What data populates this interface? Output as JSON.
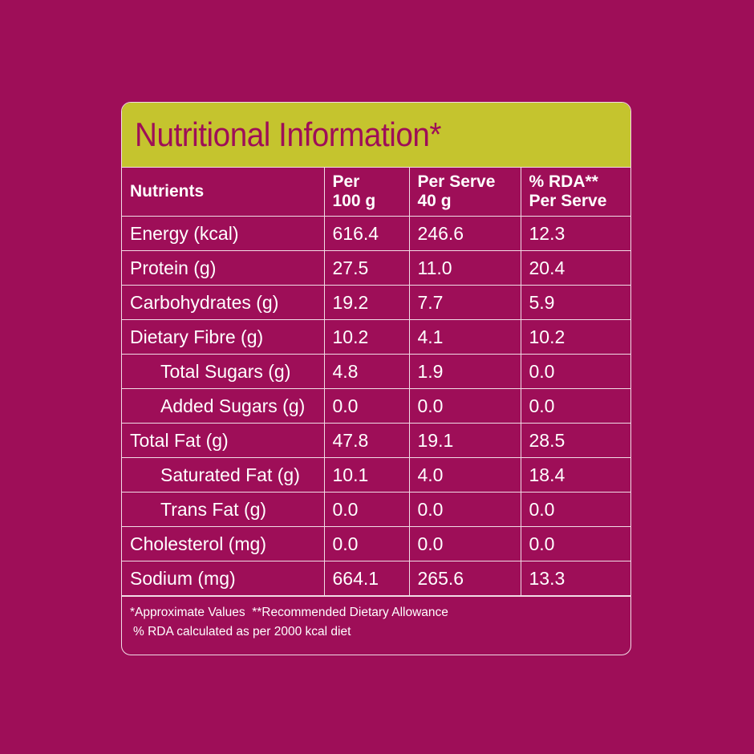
{
  "title": "Nutritional Information*",
  "columns": {
    "nutrients": "Nutrients",
    "per100_line1": "Per",
    "per100_line2": "100 g",
    "perserve_line1": "Per Serve",
    "perserve_line2": "40 g",
    "rda_line1": "% RDA**",
    "rda_line2": "Per Serve"
  },
  "rows": [
    {
      "name": "Energy (kcal)",
      "per100": "616.4",
      "perServe": "246.6",
      "rda": "12.3"
    },
    {
      "name": "Protein (g)",
      "per100": "27.5",
      "perServe": "11.0",
      "rda": "20.4"
    },
    {
      "name": "Carbohydrates (g)",
      "per100": "19.2",
      "perServe": "7.7",
      "rda": "5.9"
    },
    {
      "name": "Dietary Fibre (g)",
      "per100": "10.2",
      "perServe": "4.1",
      "rda": "10.2"
    },
    {
      "name": "Total Sugars (g)",
      "per100": "4.8",
      "perServe": "1.9",
      "rda": "0.0"
    },
    {
      "name": "Added Sugars (g)",
      "per100": "0.0",
      "perServe": "0.0",
      "rda": "0.0"
    },
    {
      "name": "Total Fat (g)",
      "per100": "47.8",
      "perServe": "19.1",
      "rda": "28.5"
    },
    {
      "name": "Saturated Fat (g)",
      "per100": "10.1",
      "perServe": "4.0",
      "rda": "18.4"
    },
    {
      "name": "Trans Fat (g)",
      "per100": "0.0",
      "perServe": "0.0",
      "rda": "0.0"
    },
    {
      "name": "Cholesterol (mg)",
      "per100": "0.0",
      "perServe": "0.0",
      "rda": "0.0"
    },
    {
      "name": "Sodium (mg)",
      "per100": "664.1",
      "perServe": "265.6",
      "rda": "13.3"
    }
  ],
  "footnotes": {
    "line1": "*Approximate Values  **Recommended Dietary Allowance",
    "line2": "% RDA calculated as per 2000 kcal diet"
  },
  "colors": {
    "background": "#9e0e58",
    "header_band": "#c5c42e",
    "title_text": "#9e0e58",
    "text": "#ffffff",
    "border": "#f2dce6"
  }
}
